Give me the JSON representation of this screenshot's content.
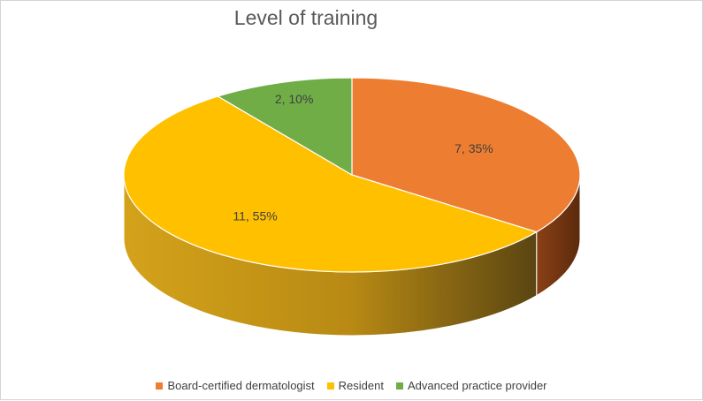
{
  "chart_data": {
    "type": "pie",
    "title": "Level of training",
    "slices": [
      {
        "name": "Board-certified dermatologist",
        "value": 7,
        "label": "7, 35%",
        "color": "#ED7D31"
      },
      {
        "name": "Resident",
        "value": 11,
        "label": "11, 55%",
        "color": "#FFC000"
      },
      {
        "name": "Advanced practice provider",
        "value": 2,
        "label": "2, 10%",
        "color": "#70AD47"
      }
    ],
    "legend_position": "bottom",
    "style": "3d"
  }
}
